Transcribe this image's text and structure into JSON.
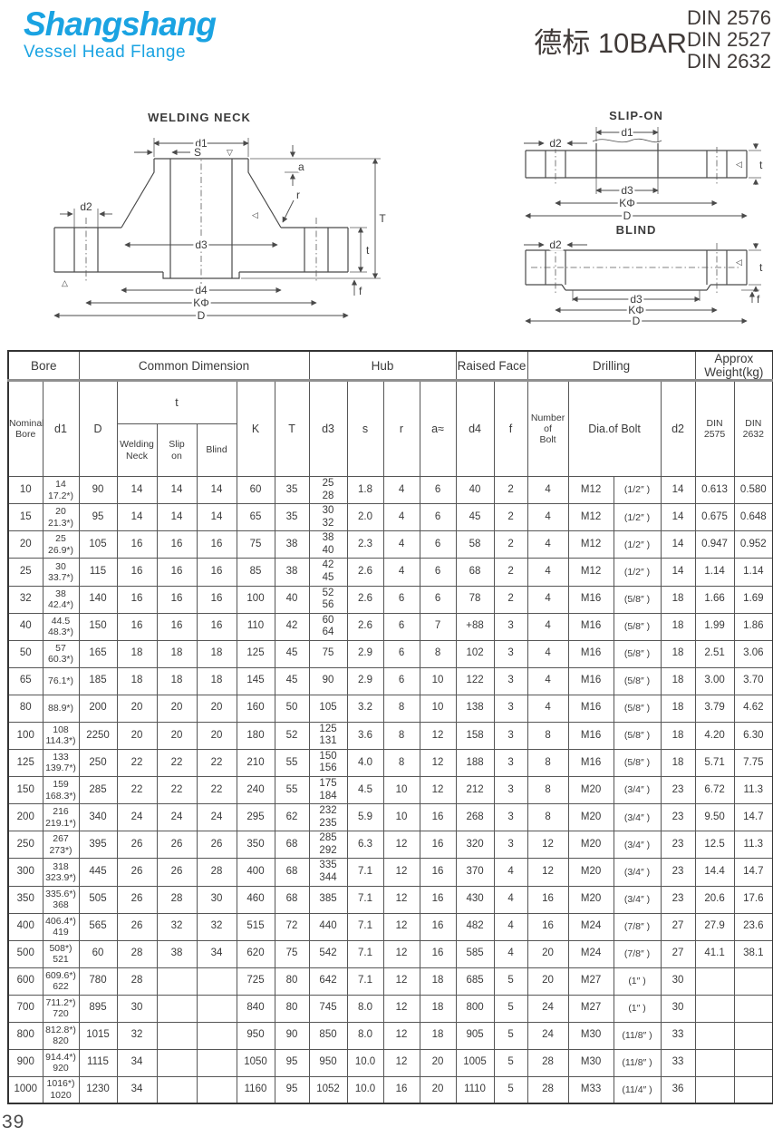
{
  "brand": {
    "name": "Shangshang",
    "tagline": "Vessel Head Flange",
    "color": "#1aa3e2"
  },
  "title": {
    "cn": "德标 10BAR",
    "standards": [
      "DIN 2576",
      "DIN 2527",
      "DIN 2632"
    ]
  },
  "drawings": {
    "welding_neck": {
      "title": "WELDING NECK",
      "labels": {
        "d1": "d1",
        "s": "S",
        "a": "a",
        "r": "r",
        "d2": "d2",
        "d3": "d3",
        "d4": "d4",
        "k": "KΦ",
        "D": "D",
        "T": "T",
        "t": "t",
        "f": "f"
      },
      "marks": [
        "▽",
        "◁",
        "△"
      ]
    },
    "slip_on": {
      "title": "SLIP-ON",
      "labels": {
        "d1": "d1",
        "d2": "d2",
        "d3": "d3",
        "k": "KΦ",
        "D": "D",
        "t": "t"
      },
      "marks": [
        "◁"
      ]
    },
    "blind": {
      "title": "BLIND",
      "labels": {
        "d2": "d2",
        "d3": "d3",
        "k": "KΦ",
        "D": "D",
        "t": "t",
        "f": "f"
      },
      "marks": [
        "◁"
      ]
    }
  },
  "table": {
    "groups": [
      {
        "label": "Bore",
        "span": 2
      },
      {
        "label": "Common Dimension",
        "span": 6
      },
      {
        "label": "Hub",
        "span": 4
      },
      {
        "label": "Raised Face",
        "span": 2
      },
      {
        "label": "Drilling",
        "span": 4
      },
      {
        "label": "Approx\nWeight(kg)",
        "span": 2
      }
    ],
    "headers": {
      "nominal": "Nominal\nBore",
      "d1": "d1",
      "D": "D",
      "t": "t",
      "t_welding": "Welding\nNeck",
      "t_slip": "Slip\non",
      "t_blind": "Blind",
      "K": "K",
      "T": "T",
      "d3": "d3",
      "s": "s",
      "r": "r",
      "a": "a≈",
      "d4": "d4",
      "f": "f",
      "bolt_count": "Number\nof\nBolt",
      "bolt_dia": "Dia.of Bolt",
      "d2": "d2",
      "w1": "DIN\n2575",
      "w2": "DIN\n2632"
    },
    "rows": [
      [
        "10",
        "14\n17.2*)",
        "90",
        "14",
        "14",
        "14",
        "60",
        "35",
        "25\n28",
        "1.8",
        "4",
        "6",
        "40",
        "2",
        "4",
        "M12",
        "(1/2″ )",
        "14",
        "0.613",
        "0.580"
      ],
      [
        "15",
        "20\n21.3*)",
        "95",
        "14",
        "14",
        "14",
        "65",
        "35",
        "30\n32",
        "2.0",
        "4",
        "6",
        "45",
        "2",
        "4",
        "M12",
        "(1/2″ )",
        "14",
        "0.675",
        "0.648"
      ],
      [
        "20",
        "25\n26.9*)",
        "105",
        "16",
        "16",
        "16",
        "75",
        "38",
        "38\n40",
        "2.3",
        "4",
        "6",
        "58",
        "2",
        "4",
        "M12",
        "(1/2″ )",
        "14",
        "0.947",
        "0.952"
      ],
      [
        "25",
        "30\n33.7*)",
        "115",
        "16",
        "16",
        "16",
        "85",
        "38",
        "42\n45",
        "2.6",
        "4",
        "6",
        "68",
        "2",
        "4",
        "M12",
        "(1/2″ )",
        "14",
        "1.14",
        "1.14"
      ],
      [
        "32",
        "38\n42.4*)",
        "140",
        "16",
        "16",
        "16",
        "100",
        "40",
        "52\n56",
        "2.6",
        "6",
        "6",
        "78",
        "2",
        "4",
        "M16",
        "(5/8″ )",
        "18",
        "1.66",
        "1.69"
      ],
      [
        "40",
        "44.5\n48.3*)",
        "150",
        "16",
        "16",
        "16",
        "110",
        "42",
        "60\n64",
        "2.6",
        "6",
        "7",
        "+88",
        "3",
        "4",
        "M16",
        "(5/8″ )",
        "18",
        "1.99",
        "1.86"
      ],
      [
        "50",
        "57\n60.3*)",
        "165",
        "18",
        "18",
        "18",
        "125",
        "45",
        "75",
        "2.9",
        "6",
        "8",
        "102",
        "3",
        "4",
        "M16",
        "(5/8″ )",
        "18",
        "2.51",
        "3.06"
      ],
      [
        "65",
        "76.1*)",
        "185",
        "18",
        "18",
        "18",
        "145",
        "45",
        "90",
        "2.9",
        "6",
        "10",
        "122",
        "3",
        "4",
        "M16",
        "(5/8″ )",
        "18",
        "3.00",
        "3.70"
      ],
      [
        "80",
        "88.9*)",
        "200",
        "20",
        "20",
        "20",
        "160",
        "50",
        "105",
        "3.2",
        "8",
        "10",
        "138",
        "3",
        "4",
        "M16",
        "(5/8″ )",
        "18",
        "3.79",
        "4.62"
      ],
      [
        "100",
        "108\n114.3*)",
        "2250",
        "20",
        "20",
        "20",
        "180",
        "52",
        "125\n131",
        "3.6",
        "8",
        "12",
        "158",
        "3",
        "8",
        "M16",
        "(5/8″ )",
        "18",
        "4.20",
        "6.30"
      ],
      [
        "125",
        "133\n139.7*)",
        "250",
        "22",
        "22",
        "22",
        "210",
        "55",
        "150\n156",
        "4.0",
        "8",
        "12",
        "188",
        "3",
        "8",
        "M16",
        "(5/8″ )",
        "18",
        "5.71",
        "7.75"
      ],
      [
        "150",
        "159\n168.3*)",
        "285",
        "22",
        "22",
        "22",
        "240",
        "55",
        "175\n184",
        "4.5",
        "10",
        "12",
        "212",
        "3",
        "8",
        "M20",
        "(3/4″ )",
        "23",
        "6.72",
        "11.3"
      ],
      [
        "200",
        "216\n219.1*)",
        "340",
        "24",
        "24",
        "24",
        "295",
        "62",
        "232\n235",
        "5.9",
        "10",
        "16",
        "268",
        "3",
        "8",
        "M20",
        "(3/4″ )",
        "23",
        "9.50",
        "14.7"
      ],
      [
        "250",
        "267\n273*)",
        "395",
        "26",
        "26",
        "26",
        "350",
        "68",
        "285\n292",
        "6.3",
        "12",
        "16",
        "320",
        "3",
        "12",
        "M20",
        "(3/4″ )",
        "23",
        "12.5",
        "11.3"
      ],
      [
        "300",
        "318\n323.9*)",
        "445",
        "26",
        "26",
        "28",
        "400",
        "68",
        "335\n344",
        "7.1",
        "12",
        "16",
        "370",
        "4",
        "12",
        "M20",
        "(3/4″ )",
        "23",
        "14.4",
        "14.7"
      ],
      [
        "350",
        "335.6*)\n368",
        "505",
        "26",
        "28",
        "30",
        "460",
        "68",
        "385",
        "7.1",
        "12",
        "16",
        "430",
        "4",
        "16",
        "M20",
        "(3/4″ )",
        "23",
        "20.6",
        "17.6"
      ],
      [
        "400",
        "406.4*)\n419",
        "565",
        "26",
        "32",
        "32",
        "515",
        "72",
        "440",
        "7.1",
        "12",
        "16",
        "482",
        "4",
        "16",
        "M24",
        "(7/8″ )",
        "27",
        "27.9",
        "23.6"
      ],
      [
        "500",
        "508*)\n521",
        "60",
        "28",
        "38",
        "34",
        "620",
        "75",
        "542",
        "7.1",
        "12",
        "16",
        "585",
        "4",
        "20",
        "M24",
        "(7/8″ )",
        "27",
        "41.1",
        "38.1"
      ],
      [
        "600",
        "609.6*)\n622",
        "780",
        "28",
        "",
        "",
        "725",
        "80",
        "642",
        "7.1",
        "12",
        "18",
        "685",
        "5",
        "20",
        "M27",
        "(1″ )",
        "30",
        "",
        ""
      ],
      [
        "700",
        "711.2*)\n720",
        "895",
        "30",
        "",
        "",
        "840",
        "80",
        "745",
        "8.0",
        "12",
        "18",
        "800",
        "5",
        "24",
        "M27",
        "(1″ )",
        "30",
        "",
        ""
      ],
      [
        "800",
        "812.8*)\n820",
        "1015",
        "32",
        "",
        "",
        "950",
        "90",
        "850",
        "8.0",
        "12",
        "18",
        "905",
        "5",
        "24",
        "M30",
        "(11/8″ )",
        "33",
        "",
        ""
      ],
      [
        "900",
        "914.4*)\n920",
        "1115",
        "34",
        "",
        "",
        "1050",
        "95",
        "950",
        "10.0",
        "12",
        "20",
        "1005",
        "5",
        "28",
        "M30",
        "(11/8″ )",
        "33",
        "",
        ""
      ],
      [
        "1000",
        "1016*)\n1020",
        "1230",
        "34",
        "",
        "",
        "1160",
        "95",
        "1052",
        "10.0",
        "16",
        "20",
        "1110",
        "5",
        "28",
        "M33",
        "(11/4″ )",
        "36",
        "",
        ""
      ]
    ]
  },
  "page_number": "39"
}
